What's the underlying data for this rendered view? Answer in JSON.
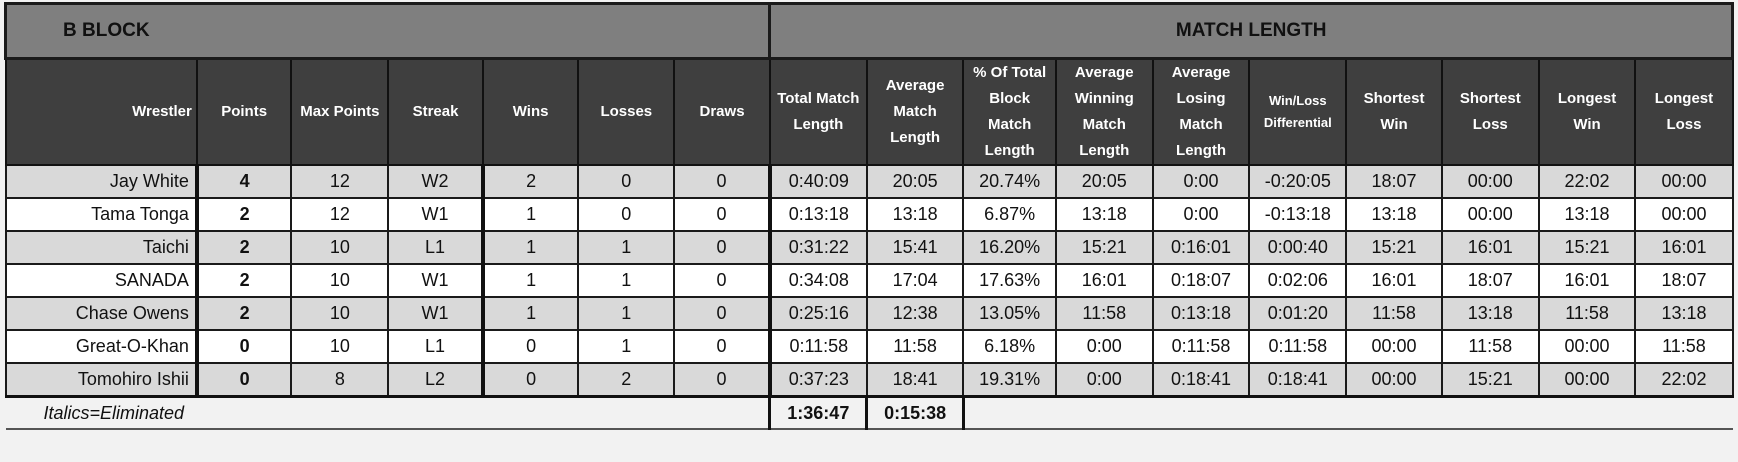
{
  "headers": {
    "block_title": "B BLOCK",
    "match_length_title": "MATCH LENGTH",
    "columns": {
      "wrestler": "Wrestler",
      "points": "Points",
      "max_points": "Max Points",
      "streak": "Streak",
      "wins": "Wins",
      "losses": "Losses",
      "draws": "Draws",
      "total_match_length": "Total Match Length",
      "average_match_length": "Average Match Length",
      "pct_total_block": "% Of Total Block Match Length",
      "avg_winning": "Average Winning Match Length",
      "avg_losing": "Average Losing Match Length",
      "win_loss_diff": "Win/Loss Differential",
      "shortest_win": "Shortest Win",
      "shortest_loss": "Shortest Loss",
      "longest_win": "Longest Win",
      "longest_loss": "Longest Loss"
    }
  },
  "rows": [
    {
      "wrestler": "Jay White",
      "points": "4",
      "max_points": "12",
      "streak": "W2",
      "wins": "2",
      "losses": "0",
      "draws": "0",
      "total": "0:40:09",
      "average": "20:05",
      "pct": "20.74%",
      "avg_win": "20:05",
      "avg_loss": "0:00",
      "diff": "-0:20:05",
      "shortest_win": "18:07",
      "shortest_loss": "00:00",
      "longest_win": "22:02",
      "longest_loss": "00:00"
    },
    {
      "wrestler": "Tama Tonga",
      "points": "2",
      "max_points": "12",
      "streak": "W1",
      "wins": "1",
      "losses": "0",
      "draws": "0",
      "total": "0:13:18",
      "average": "13:18",
      "pct": "6.87%",
      "avg_win": "13:18",
      "avg_loss": "0:00",
      "diff": "-0:13:18",
      "shortest_win": "13:18",
      "shortest_loss": "00:00",
      "longest_win": "13:18",
      "longest_loss": "00:00"
    },
    {
      "wrestler": "Taichi",
      "points": "2",
      "max_points": "10",
      "streak": "L1",
      "wins": "1",
      "losses": "1",
      "draws": "0",
      "total": "0:31:22",
      "average": "15:41",
      "pct": "16.20%",
      "avg_win": "15:21",
      "avg_loss": "0:16:01",
      "diff": "0:00:40",
      "shortest_win": "15:21",
      "shortest_loss": "16:01",
      "longest_win": "15:21",
      "longest_loss": "16:01"
    },
    {
      "wrestler": "SANADA",
      "points": "2",
      "max_points": "10",
      "streak": "W1",
      "wins": "1",
      "losses": "1",
      "draws": "0",
      "total": "0:34:08",
      "average": "17:04",
      "pct": "17.63%",
      "avg_win": "16:01",
      "avg_loss": "0:18:07",
      "diff": "0:02:06",
      "shortest_win": "16:01",
      "shortest_loss": "18:07",
      "longest_win": "16:01",
      "longest_loss": "18:07"
    },
    {
      "wrestler": "Chase Owens",
      "points": "2",
      "max_points": "10",
      "streak": "W1",
      "wins": "1",
      "losses": "1",
      "draws": "0",
      "total": "0:25:16",
      "average": "12:38",
      "pct": "13.05%",
      "avg_win": "11:58",
      "avg_loss": "0:13:18",
      "diff": "0:01:20",
      "shortest_win": "11:58",
      "shortest_loss": "13:18",
      "longest_win": "11:58",
      "longest_loss": "13:18"
    },
    {
      "wrestler": "Great-O-Khan",
      "points": "0",
      "max_points": "10",
      "streak": "L1",
      "wins": "0",
      "losses": "1",
      "draws": "0",
      "total": "0:11:58",
      "average": "11:58",
      "pct": "6.18%",
      "avg_win": "0:00",
      "avg_loss": "0:11:58",
      "diff": "0:11:58",
      "shortest_win": "00:00",
      "shortest_loss": "11:58",
      "longest_win": "00:00",
      "longest_loss": "11:58"
    },
    {
      "wrestler": "Tomohiro Ishii",
      "points": "0",
      "max_points": "8",
      "streak": "L2",
      "wins": "0",
      "losses": "2",
      "draws": "0",
      "total": "0:37:23",
      "average": "18:41",
      "pct": "19.31%",
      "avg_win": "0:00",
      "avg_loss": "0:18:41",
      "diff": "0:18:41",
      "shortest_win": "00:00",
      "shortest_loss": "15:21",
      "longest_win": "00:00",
      "longest_loss": "22:02"
    }
  ],
  "footer": {
    "note": "Italics=Eliminated",
    "total_length": "1:36:47",
    "average_length": "0:15:38"
  }
}
